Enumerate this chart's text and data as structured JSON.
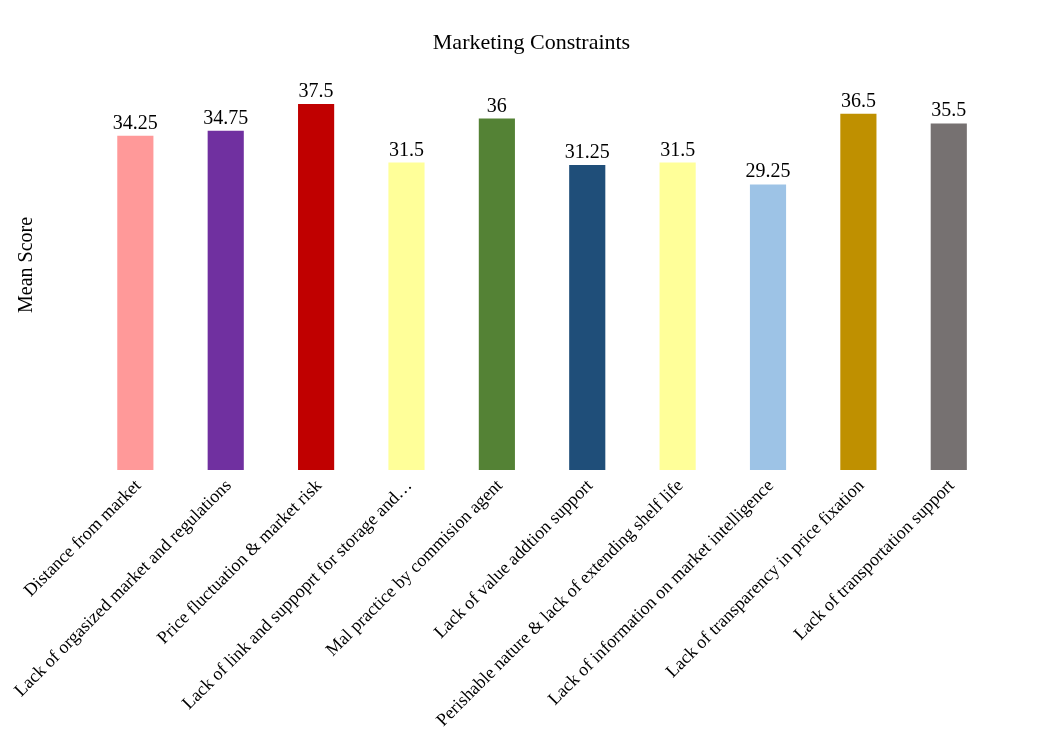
{
  "chart_data": {
    "type": "bar",
    "title": "Marketing Constraints",
    "ylabel": "Mean Score",
    "categories": [
      "Distance from market",
      "Lack of orgasized market and regulations",
      "Price fluctuation & market risk",
      "Lack of link and suppoprt for storage and…",
      "Mal practice by commision agent",
      "Lack of value addtion support",
      "Perishable nature & lack of extending shelf life",
      "Lack of information on market intelligence",
      "Lack of transparency in price fixation",
      "Lack of transportation support"
    ],
    "values": [
      34.25,
      34.75,
      37.5,
      31.5,
      36,
      31.25,
      31.5,
      29.25,
      36.5,
      35.5
    ],
    "colors": [
      "#ff9999",
      "#7030a0",
      "#c00000",
      "#ffff99",
      "#548235",
      "#1f4e79",
      "#ffff99",
      "#9dc3e6",
      "#bf9000",
      "#767171"
    ],
    "data_labels": true
  }
}
